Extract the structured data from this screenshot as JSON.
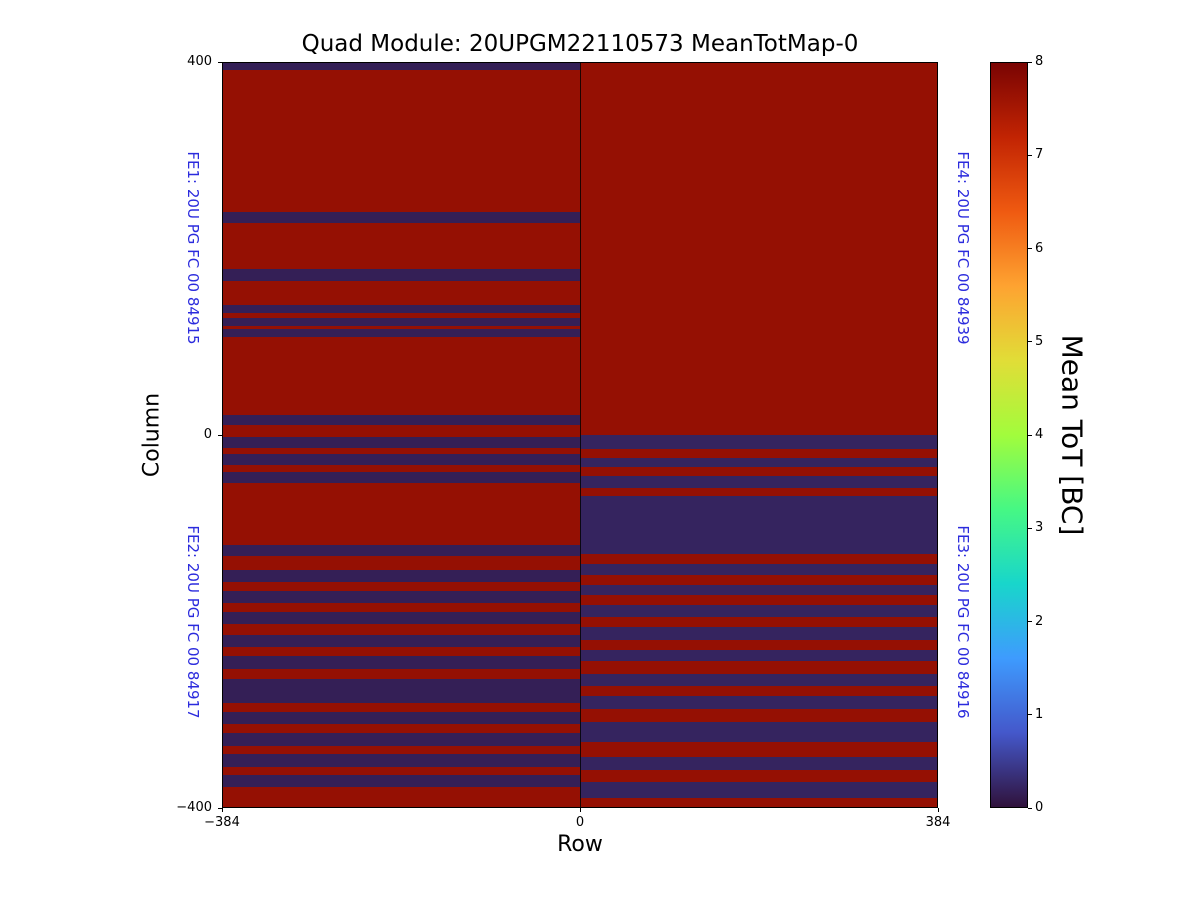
{
  "chart_data": {
    "type": "heatmap",
    "title": "Quad Module: 20UPGM22110573 MeanTotMap-0",
    "axes": {
      "xlabel": "Row",
      "ylabel": "Column",
      "x_ticks": [
        {
          "v": -384,
          "label": "−384"
        },
        {
          "v": 0,
          "label": "0"
        },
        {
          "v": 384,
          "label": "384"
        }
      ],
      "y_ticks": [
        {
          "v": 400,
          "label": "400"
        },
        {
          "v": 0,
          "label": "0"
        },
        {
          "v": -400,
          "label": "−400"
        }
      ]
    },
    "x_range": [
      -384,
      384
    ],
    "y_range": [
      -400,
      400
    ],
    "grid": false,
    "annotations": {
      "color": "#2b2bdd",
      "fe1": "FE1: 20U PG FC 00 84915",
      "fe2": "FE2: 20U PG FC 00 84917",
      "fe3": "FE3: 20U PG FC 00 84916",
      "fe4": "FE4: 20U PG FC 00 84939"
    },
    "colorbar": {
      "label": "Mean ToT [BC]",
      "min": 0,
      "max": 8,
      "ticks": [
        0,
        1,
        2,
        3,
        4,
        5,
        6,
        7,
        8
      ],
      "stops": [
        {
          "t": 0.0,
          "color": "#30123b"
        },
        {
          "t": 0.1,
          "color": "#4458cb"
        },
        {
          "t": 0.2,
          "color": "#3e9bfe"
        },
        {
          "t": 0.3,
          "color": "#18d6cb"
        },
        {
          "t": 0.4,
          "color": "#46f884"
        },
        {
          "t": 0.5,
          "color": "#a2fc3c"
        },
        {
          "t": 0.6,
          "color": "#e1dd37"
        },
        {
          "t": 0.7,
          "color": "#fea331"
        },
        {
          "t": 0.8,
          "color": "#ef5a11"
        },
        {
          "t": 0.9,
          "color": "#c22403"
        },
        {
          "t": 1.0,
          "color": "#7a0403"
        }
      ]
    },
    "quadrants": [
      {
        "name": "FE1",
        "x": [
          -384,
          0
        ],
        "y": [
          0,
          400
        ],
        "base_value": 7.7,
        "stripes": [
          {
            "top": 400,
            "bottom": 392,
            "value": 0.15
          },
          {
            "top": 240,
            "bottom": 228,
            "value": 0.15
          },
          {
            "top": 178,
            "bottom": 166,
            "value": 0.15
          },
          {
            "top": 140,
            "bottom": 131,
            "value": 0.15
          },
          {
            "top": 126,
            "bottom": 117,
            "value": 0.15
          },
          {
            "top": 114,
            "bottom": 105,
            "value": 0.15
          },
          {
            "top": 21,
            "bottom": 11,
            "value": 0.15
          }
        ]
      },
      {
        "name": "FE4",
        "x": [
          0,
          384
        ],
        "y": [
          0,
          400
        ],
        "base_value": 7.7,
        "stripes": []
      },
      {
        "name": "FE2",
        "x": [
          -384,
          0
        ],
        "y": [
          -400,
          0
        ],
        "base_value": 7.7,
        "stripes": [
          {
            "top": -2,
            "bottom": -14,
            "value": 0.15
          },
          {
            "top": -20,
            "bottom": -32,
            "value": 0.15
          },
          {
            "top": -40,
            "bottom": -52,
            "value": 0.15
          },
          {
            "top": -118,
            "bottom": -130,
            "value": 0.15
          },
          {
            "top": -145,
            "bottom": -158,
            "value": 0.15
          },
          {
            "top": -168,
            "bottom": -181,
            "value": 0.15
          },
          {
            "top": -190,
            "bottom": -203,
            "value": 0.15
          },
          {
            "top": -215,
            "bottom": -228,
            "value": 0.15
          },
          {
            "top": -238,
            "bottom": -252,
            "value": 0.15
          },
          {
            "top": -262,
            "bottom": -288,
            "value": 0.15
          },
          {
            "top": -298,
            "bottom": -311,
            "value": 0.15
          },
          {
            "top": -320,
            "bottom": -334,
            "value": 0.15
          },
          {
            "top": -343,
            "bottom": -357,
            "value": 0.15
          },
          {
            "top": -366,
            "bottom": -379,
            "value": 0.15
          }
        ]
      },
      {
        "name": "FE3",
        "x": [
          0,
          384
        ],
        "y": [
          -400,
          0
        ],
        "base_value": 0.2,
        "stripes": [
          {
            "top": -15,
            "bottom": -25,
            "value": 7.7
          },
          {
            "top": -34,
            "bottom": -44,
            "value": 7.7
          },
          {
            "top": -57,
            "bottom": -66,
            "value": 7.7
          },
          {
            "top": -128,
            "bottom": -139,
            "value": 7.7
          },
          {
            "top": -150,
            "bottom": -161,
            "value": 7.7
          },
          {
            "top": -172,
            "bottom": -183,
            "value": 7.7
          },
          {
            "top": -196,
            "bottom": -207,
            "value": 7.7
          },
          {
            "top": -220,
            "bottom": -231,
            "value": 7.7
          },
          {
            "top": -243,
            "bottom": -257,
            "value": 7.7
          },
          {
            "top": -270,
            "bottom": -281,
            "value": 7.7
          },
          {
            "top": -295,
            "bottom": -309,
            "value": 7.7
          },
          {
            "top": -330,
            "bottom": -346,
            "value": 7.7
          },
          {
            "top": -360,
            "bottom": -373,
            "value": 7.7
          },
          {
            "top": -390,
            "bottom": -400,
            "value": 7.7
          }
        ]
      }
    ]
  }
}
